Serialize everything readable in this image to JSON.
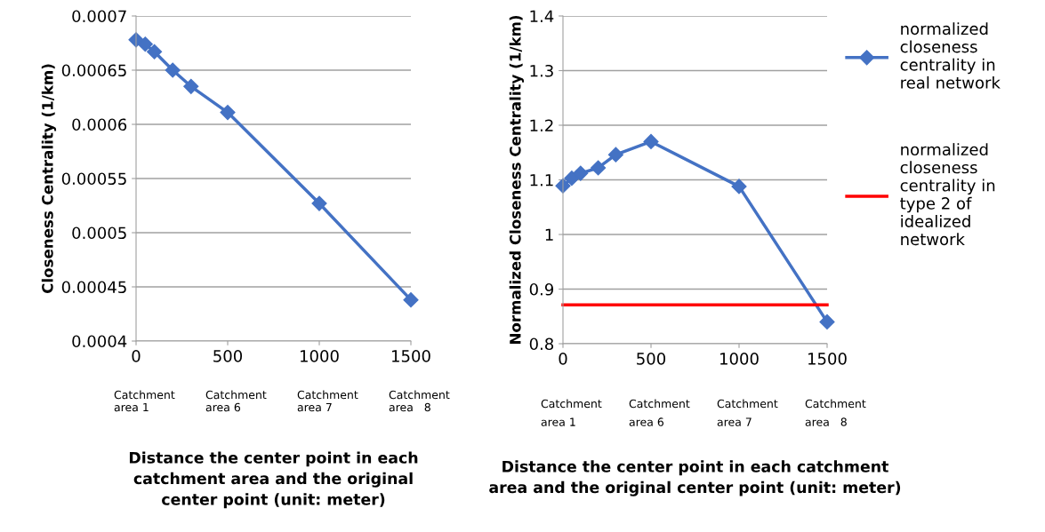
{
  "chart_data": [
    {
      "type": "line",
      "x": [
        0,
        50,
        100,
        200,
        300,
        500,
        1000,
        1500
      ],
      "series": [
        {
          "color": "#4472c4",
          "values": [
            0.000678,
            0.000674,
            0.000667,
            0.00065,
            0.000635,
            0.000611,
            0.000527,
            0.000438
          ],
          "marker": "diamond"
        }
      ],
      "xlim": [
        0,
        1500
      ],
      "xticks": [
        0,
        500,
        1000,
        1500
      ],
      "ylim": [
        0.0004,
        0.0007
      ],
      "yticks": [
        {
          "value": 0.0004,
          "label": "0.0004"
        },
        {
          "value": 0.00045,
          "label": "0.00045"
        },
        {
          "value": 0.0005,
          "label": "0.0005"
        },
        {
          "value": 0.00055,
          "label": "0.00055"
        },
        {
          "value": 0.0006,
          "label": "0.0006"
        },
        {
          "value": 0.00065,
          "label": "0.00065"
        },
        {
          "value": 0.0007,
          "label": "0.0007"
        }
      ],
      "ylabel": "Closeness Centrality (1/km)",
      "xlabel": "Distance the center point in each\ncatchment area and the original\ncenter point (unit: meter)",
      "grid": "y",
      "legend": false,
      "annotations": [
        "Catchment\narea 1",
        "Catchment\narea 6",
        "Catchment\narea 7",
        "Catchment\narea   8"
      ]
    },
    {
      "type": "line",
      "x": [
        0,
        50,
        100,
        200,
        300,
        500,
        1000,
        1500
      ],
      "series": [
        {
          "name": "normalized\ncloseness\ncentrality in\nreal network",
          "color": "#4472c4",
          "values": [
            1.089,
            1.103,
            1.112,
            1.122,
            1.146,
            1.17,
            1.088,
            0.84
          ],
          "marker": "diamond"
        },
        {
          "name": "normalized\ncloseness\ncentrality in\ntype 2 of\nidealized\nnetwork",
          "color": "#ff0000",
          "x": [
            0,
            1500
          ],
          "values": [
            0.871,
            0.871
          ],
          "marker": "none"
        }
      ],
      "xlim": [
        0,
        1500
      ],
      "xticks": [
        0,
        500,
        1000,
        1500
      ],
      "ylim": [
        0.8,
        1.4
      ],
      "yticks": [
        0.8,
        0.9,
        1,
        1.1,
        1.2,
        1.3,
        1.4
      ],
      "ylabel": "Normalized Closeness Centrality (1/km)",
      "xlabel": "Distance the center point in each catchment\narea and the original center point (unit: meter)",
      "grid": "y",
      "legend": "right",
      "annotations": [
        "Catchment\narea 1",
        "Catchment\narea 6",
        "Catchment\narea 7",
        "Catchment\narea   8"
      ]
    }
  ]
}
